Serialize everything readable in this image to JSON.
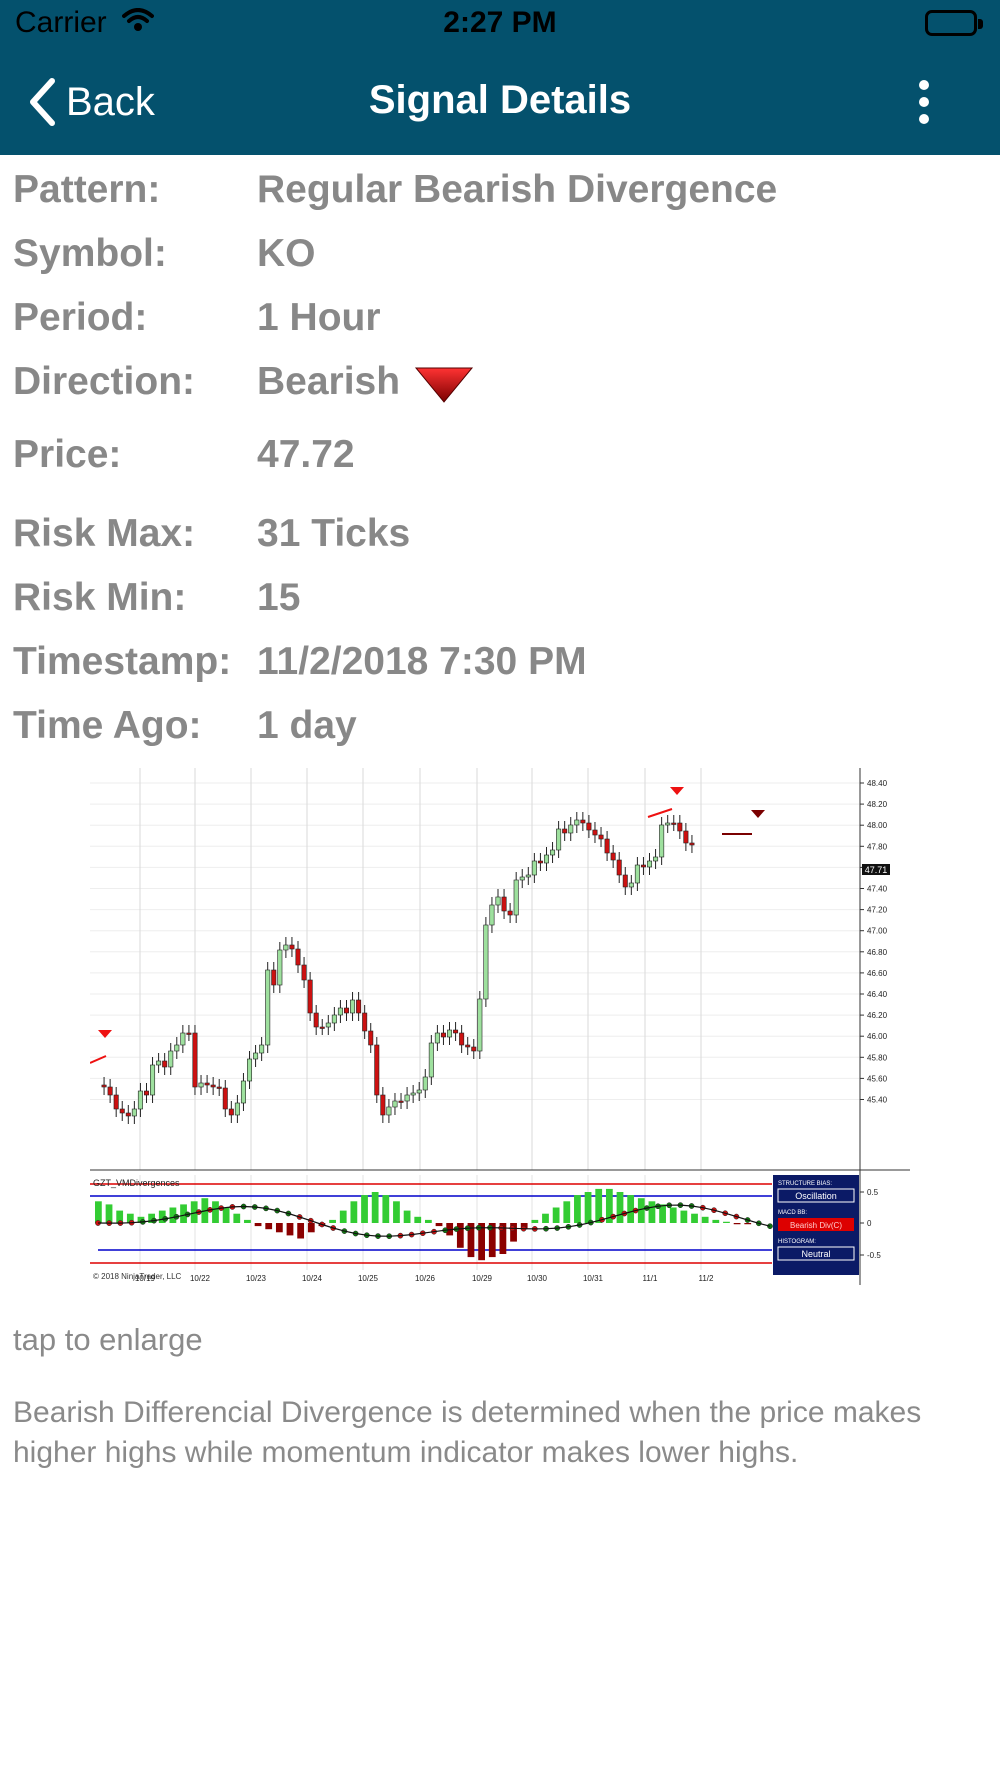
{
  "status_bar": {
    "carrier": "Carrier",
    "time": "2:27 PM"
  },
  "nav": {
    "back_label": "Back",
    "title": "Signal Details"
  },
  "details": [
    {
      "label": "Pattern:",
      "value": "Regular Bearish Divergence"
    },
    {
      "label": "Symbol:",
      "value": "KO"
    },
    {
      "label": "Period:",
      "value": "1 Hour"
    },
    {
      "label": "Direction:",
      "value": "Bearish"
    },
    {
      "label": "Price:",
      "value": "47.72"
    },
    {
      "label": "Risk Max:",
      "value": "31 Ticks"
    },
    {
      "label": "Risk Min:",
      "value": "15"
    },
    {
      "label": "Timestamp:",
      "value": "11/2/2018 7:30 PM"
    },
    {
      "label": "Time Ago:",
      "value": "1 day"
    }
  ],
  "chart": {
    "indicator_label": "GZT_VMDivergences",
    "copyright": "© 2018 NinjaTrader, LLC",
    "price_label": "47.71",
    "price_ticks": [
      "48.40",
      "48.20",
      "48.00",
      "47.80",
      "47.60",
      "47.40",
      "47.20",
      "47.00",
      "46.80",
      "46.60",
      "46.40",
      "46.20",
      "46.00",
      "45.80",
      "45.60",
      "45.40"
    ],
    "x_ticks": [
      "10/19",
      "10/22",
      "10/23",
      "10/24",
      "10/25",
      "10/26",
      "10/29",
      "10/30",
      "10/31",
      "11/1",
      "11/2"
    ],
    "indicator_ticks": [
      "0.5",
      "0",
      "-0.5"
    ],
    "panel": {
      "structure_label": "STRUCTURE BIAS:",
      "structure_value": "Oscillation",
      "macd_label": "MACD BB:",
      "macd_value": "Bearish Div(C)",
      "histogram_label": "HISTOGRAM:",
      "histogram_value": "Neutral"
    },
    "colors": {
      "up": "#9ee09e",
      "down": "#cc1111",
      "hist_up": "#33cc33",
      "hist_down": "#8b0000",
      "band": "#0000cc",
      "limit": "#dd0000"
    }
  },
  "tap_hint": "tap to enlarge",
  "description": "Bearish Differencial Divergence is determined when the price makes higher highs while momentum indicator makes lower highs."
}
